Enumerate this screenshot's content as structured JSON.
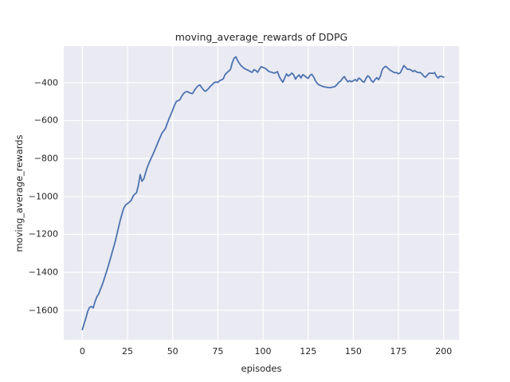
{
  "chart_data": {
    "type": "line",
    "title": "moving_average_rewards of DDPG",
    "xlabel": "episodes",
    "ylabel": "moving_average_rewards",
    "x_ticks": [
      0,
      25,
      50,
      75,
      100,
      125,
      150,
      175,
      200
    ],
    "x_tick_labels": [
      "0",
      "25",
      "50",
      "75",
      "100",
      "125",
      "150",
      "175",
      "200"
    ],
    "y_ticks": [
      -400,
      -600,
      -800,
      -1000,
      -1200,
      -1400,
      -1600
    ],
    "y_tick_labels": [
      "−400",
      "−600",
      "−800",
      "−1000",
      "−1200",
      "−1400",
      "−1600"
    ],
    "xlim": [
      -10.3,
      208.5
    ],
    "ylim": [
      -1756,
      -208
    ],
    "grid": true,
    "legend_position": "none",
    "colors": {
      "line": "#4C72B0",
      "axes_background": "#EAEAF2",
      "grid": "#FFFFFF",
      "figure_background": "#FFFFFF",
      "text": "#262626"
    },
    "series": [
      {
        "name": "moving_average_rewards",
        "x": [
          0,
          1,
          2,
          3,
          4,
          5,
          6,
          7,
          8,
          9,
          10,
          11,
          12,
          13,
          14,
          15,
          16,
          17,
          18,
          19,
          20,
          21,
          22,
          23,
          24,
          25,
          26,
          27,
          28,
          29,
          30,
          31,
          32,
          33,
          34,
          35,
          36,
          37,
          38,
          39,
          40,
          41,
          42,
          43,
          44,
          45,
          46,
          47,
          48,
          49,
          50,
          51,
          52,
          53,
          54,
          55,
          56,
          57,
          58,
          59,
          60,
          61,
          62,
          63,
          64,
          65,
          66,
          67,
          68,
          69,
          70,
          71,
          72,
          73,
          74,
          75,
          76,
          77,
          78,
          79,
          80,
          81,
          82,
          83,
          84,
          85,
          86,
          87,
          88,
          89,
          90,
          91,
          92,
          93,
          94,
          95,
          96,
          97,
          98,
          99,
          100,
          101,
          102,
          103,
          104,
          105,
          106,
          107,
          108,
          109,
          110,
          111,
          112,
          113,
          114,
          115,
          116,
          117,
          118,
          119,
          120,
          121,
          122,
          123,
          124,
          125,
          126,
          127,
          128,
          129,
          130,
          131,
          132,
          133,
          134,
          135,
          136,
          137,
          138,
          139,
          140,
          141,
          142,
          143,
          144,
          145,
          146,
          147,
          148,
          149,
          150,
          151,
          152,
          153,
          154,
          155,
          156,
          157,
          158,
          159,
          160,
          161,
          162,
          163,
          164,
          165,
          166,
          167,
          168,
          169,
          170,
          171,
          172,
          173,
          174,
          175,
          176,
          177,
          178,
          179,
          180,
          181,
          182,
          183,
          184,
          185,
          186,
          187,
          188,
          189,
          190,
          191,
          192,
          193,
          194,
          195,
          196,
          197,
          198,
          199,
          200
        ],
        "y": [
          -1702,
          -1670,
          -1640,
          -1605,
          -1585,
          -1580,
          -1588,
          -1555,
          -1530,
          -1515,
          -1490,
          -1466,
          -1438,
          -1408,
          -1378,
          -1345,
          -1312,
          -1278,
          -1245,
          -1205,
          -1165,
          -1125,
          -1090,
          -1060,
          -1045,
          -1038,
          -1030,
          -1022,
          -1000,
          -988,
          -980,
          -942,
          -885,
          -920,
          -908,
          -875,
          -845,
          -822,
          -800,
          -780,
          -758,
          -735,
          -712,
          -690,
          -668,
          -655,
          -642,
          -615,
          -590,
          -568,
          -545,
          -520,
          -500,
          -495,
          -490,
          -472,
          -458,
          -450,
          -447,
          -452,
          -456,
          -458,
          -442,
          -428,
          -418,
          -412,
          -425,
          -438,
          -446,
          -440,
          -430,
          -418,
          -410,
          -400,
          -397,
          -399,
          -390,
          -386,
          -380,
          -358,
          -348,
          -340,
          -330,
          -295,
          -272,
          -264,
          -285,
          -300,
          -312,
          -320,
          -328,
          -332,
          -336,
          -342,
          -346,
          -332,
          -336,
          -346,
          -330,
          -316,
          -320,
          -324,
          -330,
          -340,
          -344,
          -346,
          -350,
          -348,
          -342,
          -368,
          -385,
          -398,
          -376,
          -354,
          -366,
          -358,
          -350,
          -360,
          -382,
          -368,
          -360,
          -376,
          -358,
          -364,
          -372,
          -378,
          -362,
          -356,
          -370,
          -390,
          -404,
          -412,
          -416,
          -420,
          -423,
          -424,
          -426,
          -427,
          -425,
          -423,
          -420,
          -410,
          -398,
          -392,
          -378,
          -368,
          -384,
          -396,
          -390,
          -396,
          -390,
          -384,
          -392,
          -376,
          -382,
          -394,
          -398,
          -378,
          -364,
          -372,
          -390,
          -398,
          -384,
          -374,
          -384,
          -366,
          -332,
          -320,
          -314,
          -322,
          -332,
          -338,
          -344,
          -348,
          -347,
          -354,
          -348,
          -330,
          -310,
          -320,
          -330,
          -330,
          -334,
          -342,
          -336,
          -344,
          -347,
          -347,
          -354,
          -366,
          -372,
          -360,
          -350,
          -350,
          -352,
          -347,
          -366,
          -376,
          -366,
          -368,
          -372
        ]
      }
    ]
  }
}
